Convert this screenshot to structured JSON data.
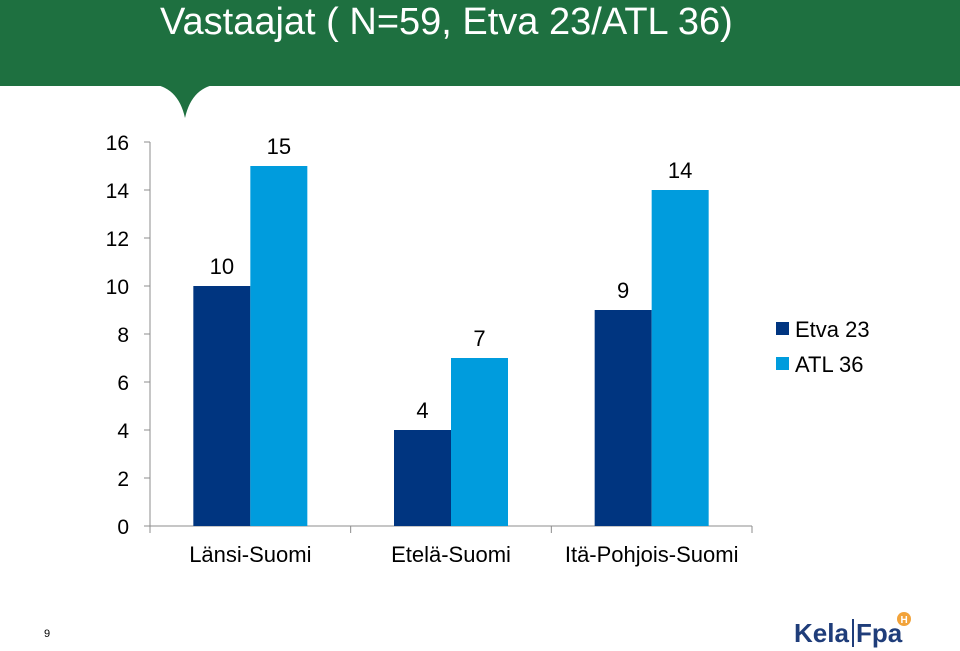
{
  "header": {
    "title": "Vastaajat ( N=59, Etva 23/ATL 36)"
  },
  "page_number": "9",
  "logo": {
    "text_left": "Kela",
    "text_right": "Fpa",
    "color_left": "#1f3d7a",
    "color_right": "#1f3d7a",
    "accent_color": "#f2a33a"
  },
  "colors": {
    "header_bg": "#1e7040",
    "series_etva": "#003580",
    "series_atl": "#009cdd"
  },
  "chart_data": {
    "type": "bar",
    "title": "",
    "xlabel": "",
    "ylabel": "",
    "categories": [
      "Länsi-Suomi",
      "Etelä-Suomi",
      "Itä-Pohjois-Suomi"
    ],
    "series": [
      {
        "name": "Etva 23",
        "values": [
          10,
          4,
          9
        ],
        "color": "#003580"
      },
      {
        "name": "ATL 36",
        "values": [
          15,
          7,
          14
        ],
        "color": "#009cdd"
      }
    ],
    "ylim": [
      0,
      16
    ],
    "yticks": [
      0,
      2,
      4,
      6,
      8,
      10,
      12,
      14,
      16
    ],
    "grid": false,
    "data_labels": true,
    "legend_position": "right"
  }
}
